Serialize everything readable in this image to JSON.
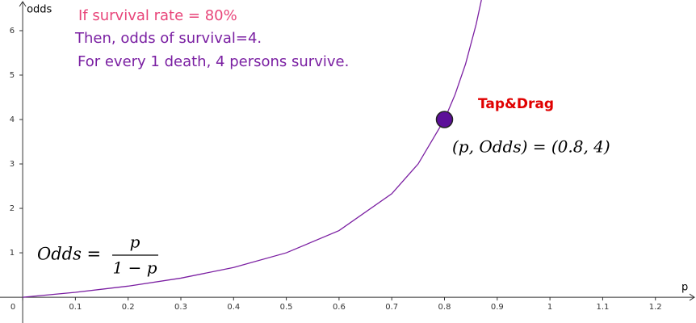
{
  "chart_data": {
    "type": "line",
    "x_label": "p",
    "y_label": "odds",
    "x": [
      0,
      0.1,
      0.2,
      0.3,
      0.4,
      0.5,
      0.6,
      0.7,
      0.75,
      0.8,
      0.82,
      0.84,
      0.86,
      0.87
    ],
    "values": [
      0,
      0.11,
      0.25,
      0.43,
      0.67,
      1,
      1.5,
      2.33,
      3,
      4,
      4.56,
      5.25,
      6.14,
      6.69
    ],
    "color": "#7b1fa2",
    "xlim": [
      -0.043,
      1.277
    ],
    "ylim": [
      -0.58,
      6.69
    ],
    "xticks": [
      0,
      0.1,
      0.2,
      0.3,
      0.4,
      0.5,
      0.6,
      0.7,
      0.8,
      0.9,
      1,
      1.1,
      1.2
    ],
    "yticks": [
      1,
      2,
      3,
      4,
      5,
      6
    ],
    "point": {
      "x": 0.8,
      "y": 4,
      "color": "#5c0f99",
      "handle": "Tap&Drag",
      "label": "(p, Odds) = (0.8, 4)"
    },
    "annotations": [
      {
        "text": "If survival rate = 80%",
        "color": "#e8457a"
      },
      {
        "text": "Then, odds of survival=4.",
        "color": "#7a1fa2"
      },
      {
        "text": "For every 1 death, 4 persons survive.",
        "color": "#7a1fa2"
      }
    ],
    "formula": {
      "lhs": "Odds =",
      "numerator": "p",
      "denominator": "1 − p"
    }
  }
}
